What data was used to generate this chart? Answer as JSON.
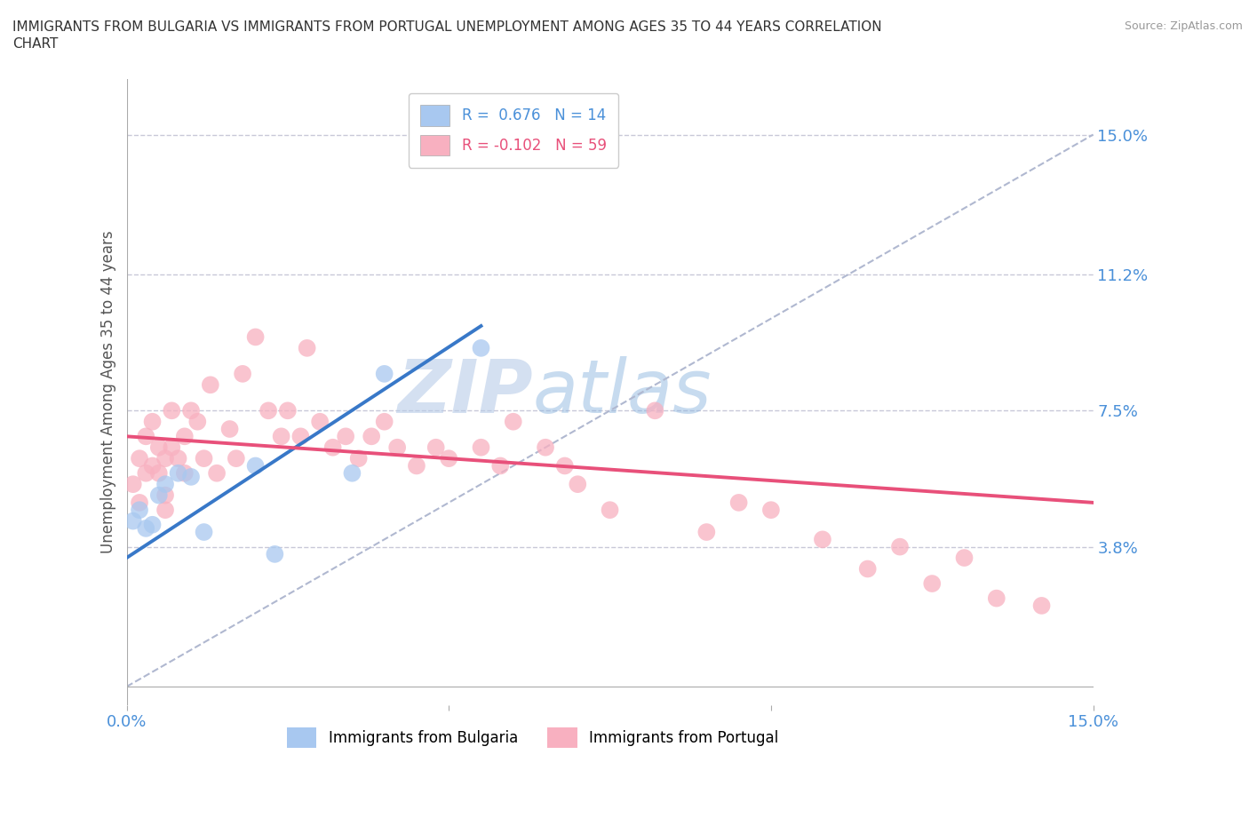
{
  "title": "IMMIGRANTS FROM BULGARIA VS IMMIGRANTS FROM PORTUGAL UNEMPLOYMENT AMONG AGES 35 TO 44 YEARS CORRELATION\nCHART",
  "source": "Source: ZipAtlas.com",
  "ylabel": "Unemployment Among Ages 35 to 44 years",
  "xlim": [
    0,
    0.15
  ],
  "ylim": [
    -0.005,
    0.165
  ],
  "right_yticks": [
    0.038,
    0.075,
    0.112,
    0.15
  ],
  "right_yticklabels": [
    "3.8%",
    "7.5%",
    "11.2%",
    "15.0%"
  ],
  "grid_color": "#c8c8d8",
  "background_color": "#ffffff",
  "watermark": "ZIPatlas",
  "watermark_color": "#c8d8f0",
  "bulgaria_color": "#a8c8f0",
  "portugal_color": "#f8b0c0",
  "bulgaria_R": "0.676",
  "bulgaria_N": "14",
  "portugal_R": "-0.102",
  "portugal_N": "59",
  "bulgaria_line_color": "#3878c8",
  "portugal_line_color": "#e8507a",
  "legend_bulgaria": "Immigrants from Bulgaria",
  "legend_portugal": "Immigrants from Portugal",
  "bulgaria_x": [
    0.001,
    0.002,
    0.003,
    0.004,
    0.005,
    0.006,
    0.008,
    0.01,
    0.012,
    0.02,
    0.023,
    0.035,
    0.04,
    0.055
  ],
  "bulgaria_y": [
    0.045,
    0.048,
    0.043,
    0.044,
    0.052,
    0.055,
    0.058,
    0.057,
    0.042,
    0.06,
    0.036,
    0.058,
    0.085,
    0.092
  ],
  "portugal_x": [
    0.001,
    0.002,
    0.002,
    0.003,
    0.003,
    0.004,
    0.004,
    0.005,
    0.005,
    0.006,
    0.006,
    0.006,
    0.007,
    0.007,
    0.008,
    0.009,
    0.009,
    0.01,
    0.011,
    0.012,
    0.013,
    0.014,
    0.016,
    0.017,
    0.018,
    0.02,
    0.022,
    0.024,
    0.025,
    0.027,
    0.028,
    0.03,
    0.032,
    0.034,
    0.036,
    0.038,
    0.04,
    0.042,
    0.045,
    0.048,
    0.05,
    0.055,
    0.058,
    0.06,
    0.065,
    0.068,
    0.07,
    0.075,
    0.082,
    0.09,
    0.095,
    0.1,
    0.108,
    0.115,
    0.12,
    0.125,
    0.13,
    0.135,
    0.142
  ],
  "portugal_y": [
    0.055,
    0.05,
    0.062,
    0.058,
    0.068,
    0.06,
    0.072,
    0.058,
    0.065,
    0.048,
    0.052,
    0.062,
    0.065,
    0.075,
    0.062,
    0.058,
    0.068,
    0.075,
    0.072,
    0.062,
    0.082,
    0.058,
    0.07,
    0.062,
    0.085,
    0.095,
    0.075,
    0.068,
    0.075,
    0.068,
    0.092,
    0.072,
    0.065,
    0.068,
    0.062,
    0.068,
    0.072,
    0.065,
    0.06,
    0.065,
    0.062,
    0.065,
    0.06,
    0.072,
    0.065,
    0.06,
    0.055,
    0.048,
    0.075,
    0.042,
    0.05,
    0.048,
    0.04,
    0.032,
    0.038,
    0.028,
    0.035,
    0.024,
    0.022
  ],
  "bulgaria_line_x": [
    0.0,
    0.055
  ],
  "bulgaria_line_y": [
    0.035,
    0.098
  ],
  "portugal_line_x": [
    0.0,
    0.15
  ],
  "portugal_line_y": [
    0.068,
    0.05
  ]
}
